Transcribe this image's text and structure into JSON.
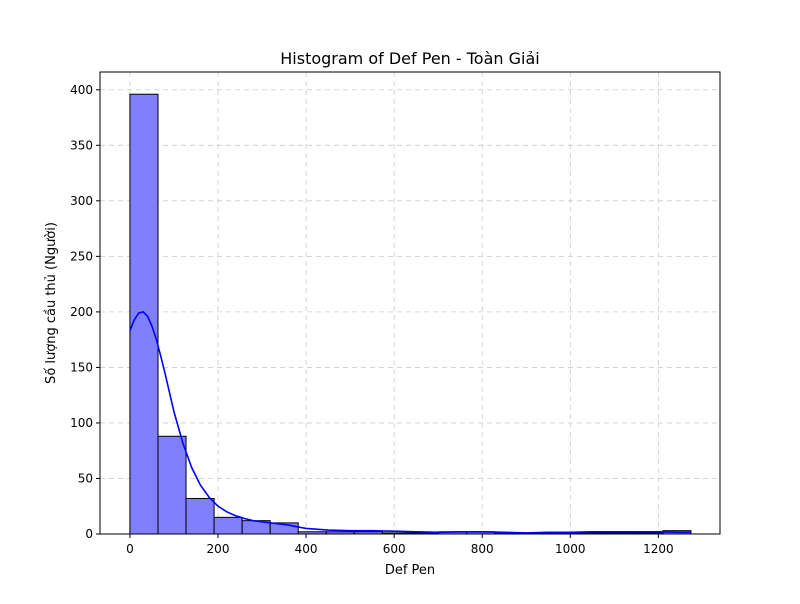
{
  "chart_data": {
    "type": "bar",
    "title": "Histogram of Def Pen - Toàn Giải",
    "xlabel": "Def Pen",
    "ylabel": "Số lượng cầu thủ (Người)",
    "xlim": [
      -68,
      1340
    ],
    "ylim": [
      0,
      416
    ],
    "grid": true,
    "x_ticks": [
      0,
      200,
      400,
      600,
      800,
      1000,
      1200
    ],
    "y_ticks": [
      0,
      50,
      100,
      150,
      200,
      250,
      300,
      350,
      400
    ],
    "bins": {
      "edges": [
        0,
        63.7,
        127.4,
        191.1,
        254.8,
        318.5,
        382.2,
        445.9,
        509.6,
        573.3,
        637,
        700.7,
        764.4,
        828.1,
        891.8,
        955.5,
        1019.2,
        1082.9,
        1146.6,
        1210.3,
        1274
      ],
      "counts": [
        396,
        88,
        32,
        15,
        12,
        10,
        2,
        2,
        2,
        1,
        1,
        2,
        2,
        1,
        1,
        1,
        1,
        1,
        1,
        3
      ]
    },
    "kde": {
      "x": [
        0,
        10,
        20,
        30,
        40,
        50,
        60,
        70,
        80,
        90,
        100,
        120,
        140,
        160,
        180,
        200,
        220,
        240,
        260,
        280,
        300,
        320,
        340,
        360,
        380,
        400,
        450,
        500,
        550,
        600,
        650,
        700,
        750,
        800,
        850,
        900,
        950,
        1000,
        1050,
        1100,
        1150,
        1200,
        1250,
        1274
      ],
      "y": [
        183,
        193,
        199,
        200,
        196,
        187,
        175,
        160,
        144,
        127,
        110,
        82,
        60,
        44,
        33,
        25,
        20,
        16.5,
        14,
        12,
        11,
        10,
        9,
        8,
        6.5,
        5,
        3.5,
        3,
        3,
        2.5,
        2,
        1.5,
        2,
        2,
        1.5,
        1,
        1.5,
        1.5,
        2,
        2,
        2,
        2,
        1.5,
        1.5
      ]
    },
    "colors": {
      "bar_fill": "#8080ff",
      "bar_edge": "#000000",
      "kde_line": "#0000ff",
      "grid": "#cccccc"
    }
  }
}
